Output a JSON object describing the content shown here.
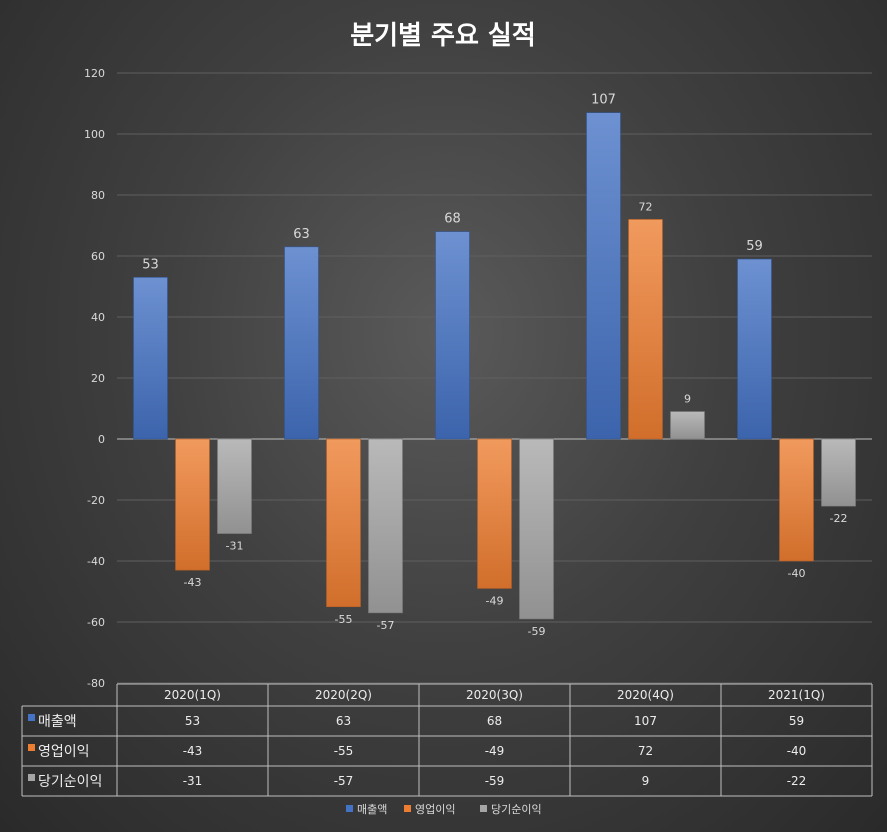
{
  "chart_data": {
    "type": "bar",
    "title": "분기별 주요 실적",
    "categories": [
      "2020(1Q)",
      "2020(2Q)",
      "2020(3Q)",
      "2020(4Q)",
      "2021(1Q)"
    ],
    "series": [
      {
        "name": "매출액",
        "values": [
          53,
          63,
          68,
          107,
          59
        ],
        "color": "#4472c4"
      },
      {
        "name": "영업이익",
        "values": [
          -43,
          -55,
          -49,
          72,
          -40
        ],
        "color": "#ed7d31"
      },
      {
        "name": "당기순이익",
        "values": [
          -31,
          -57,
          -59,
          9,
          -22
        ],
        "color": "#a5a5a5"
      }
    ],
    "ylim": [
      -80,
      120
    ],
    "y_ticks": [
      120,
      100,
      80,
      60,
      40,
      20,
      0,
      -20,
      -40,
      -60,
      -80
    ],
    "grid": true,
    "data_table": true,
    "legend": "bottom"
  }
}
